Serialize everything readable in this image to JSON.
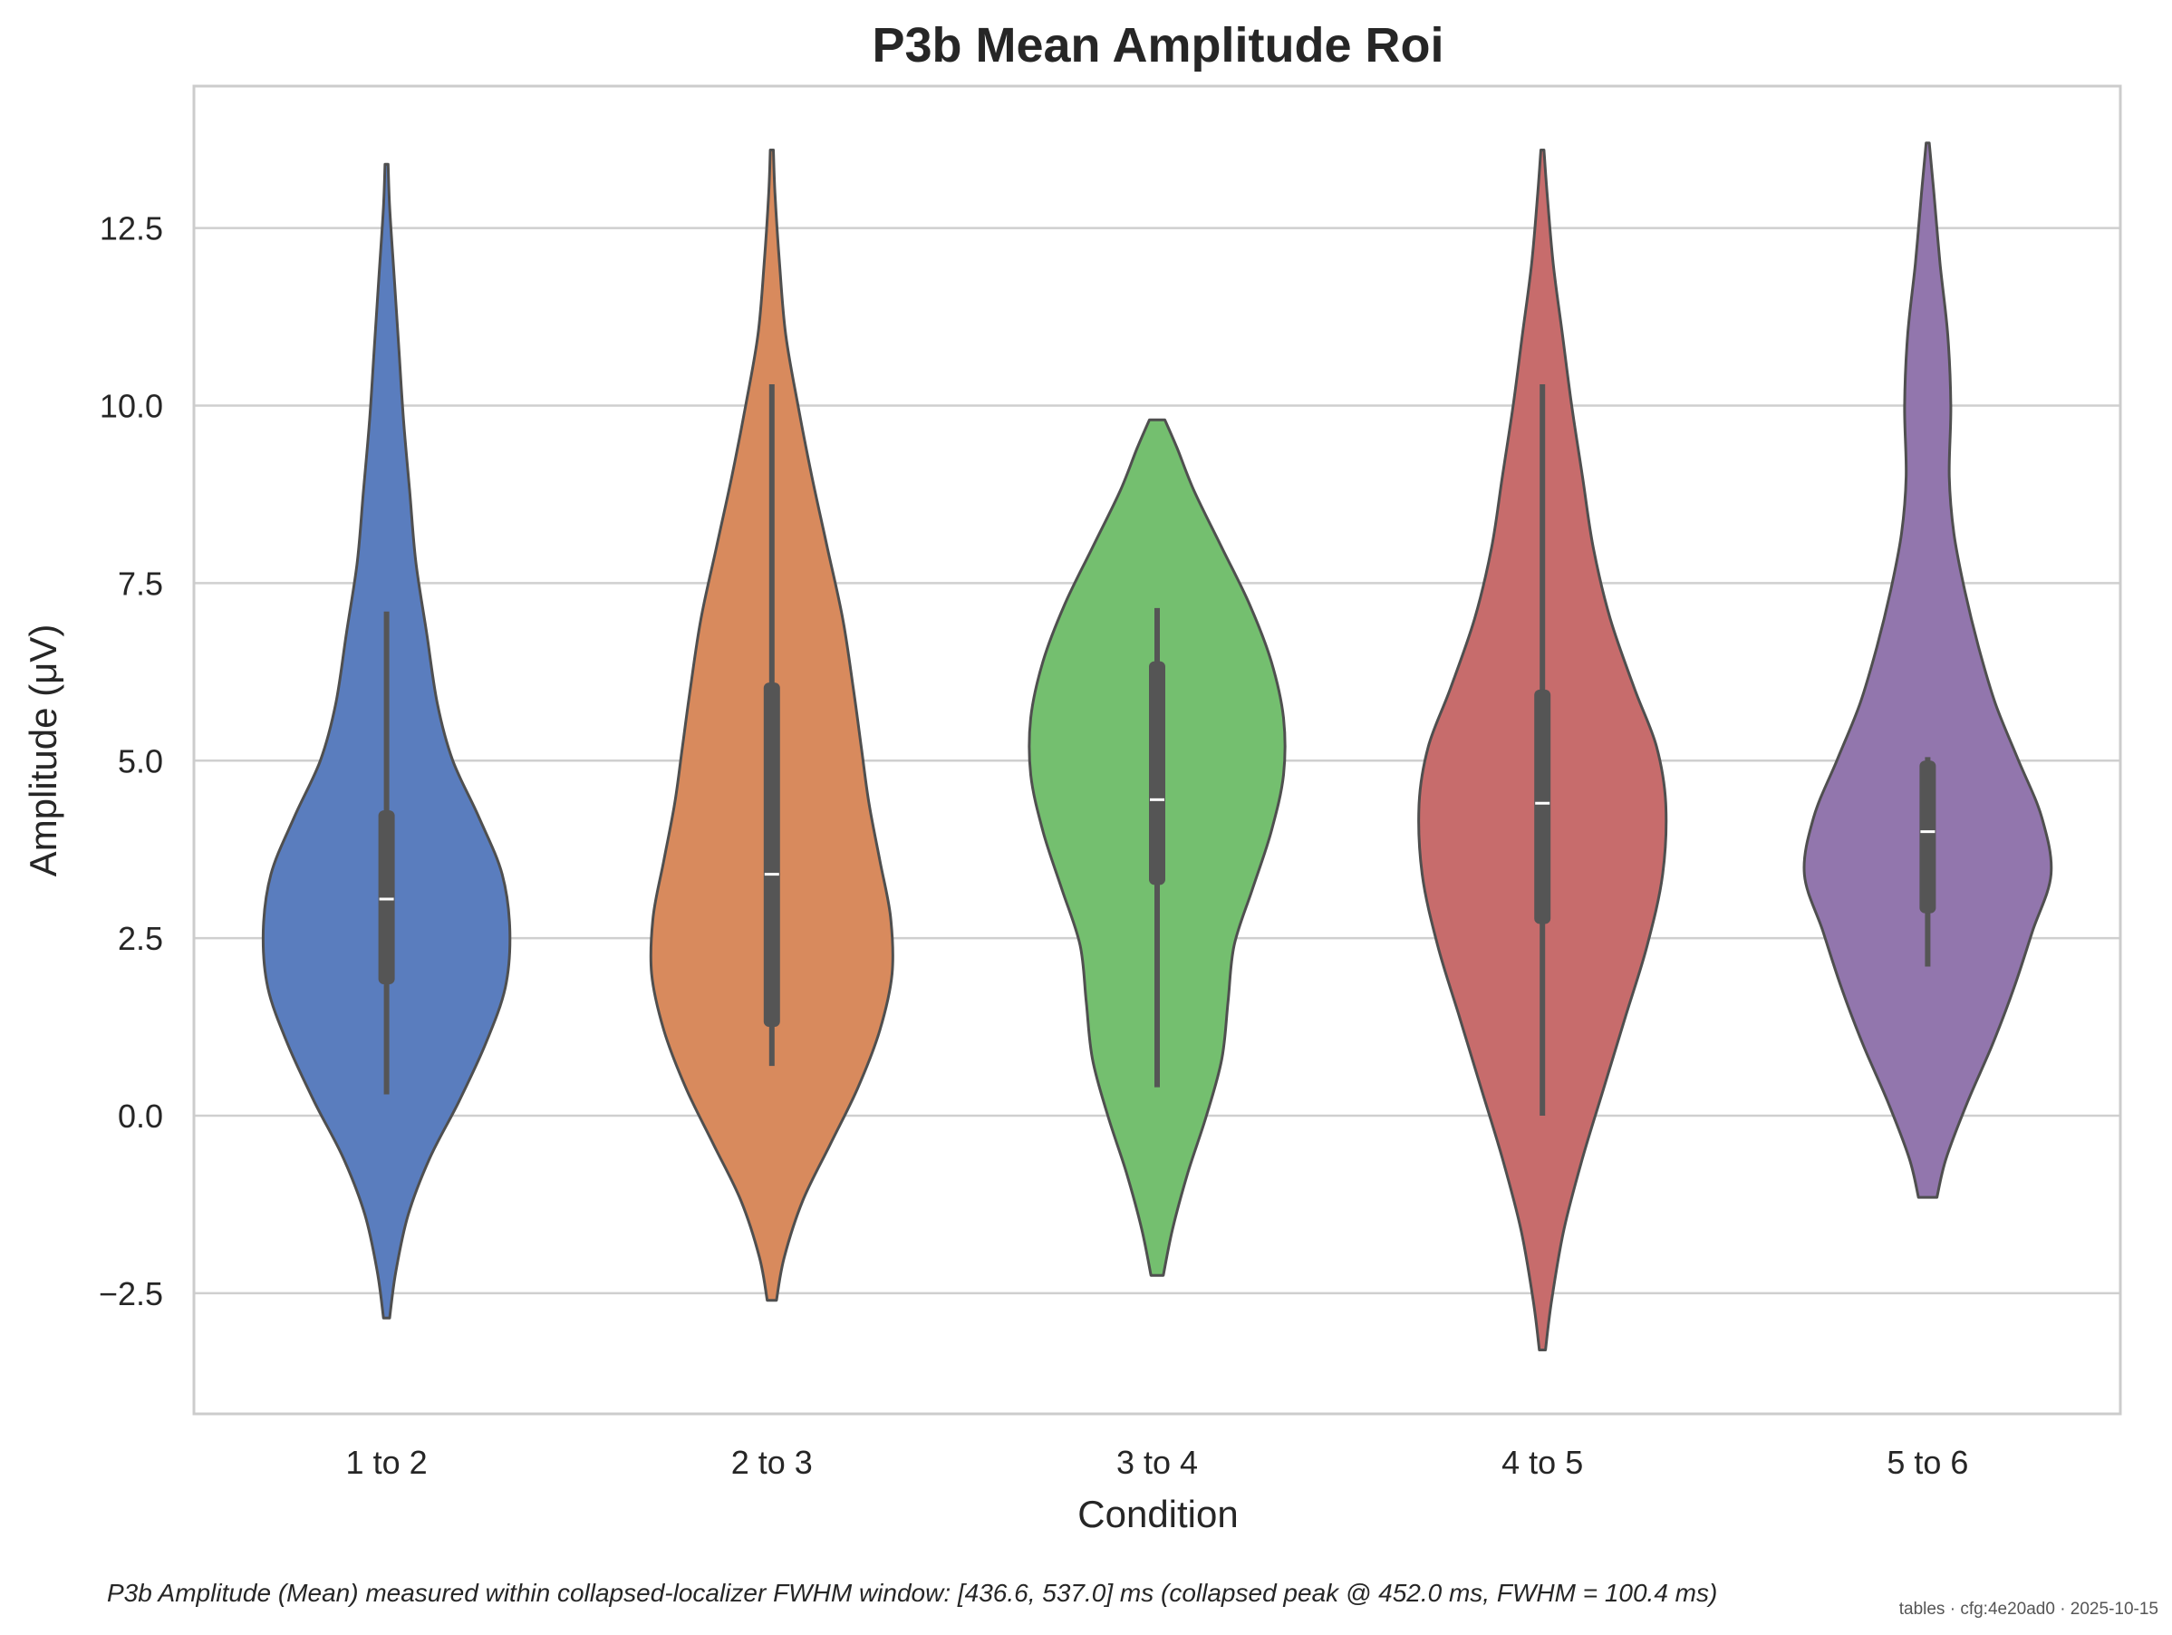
{
  "chart_data": {
    "type": "violin",
    "title": "P3b Mean Amplitude Roi",
    "xlabel": "Condition",
    "ylabel": "Amplitude (μV)",
    "ylim": [
      -4.2,
      14.5
    ],
    "yticks": [
      -2.5,
      0.0,
      2.5,
      5.0,
      7.5,
      10.0,
      12.5
    ],
    "ytick_labels": [
      "−2.5",
      "0.0",
      "2.5",
      "5.0",
      "7.5",
      "10.0",
      "12.5"
    ],
    "grid": "horizontal",
    "categories": [
      "1 to 2",
      "2 to 3",
      "3 to 4",
      "4 to 5",
      "5 to 6"
    ],
    "violins": [
      {
        "category": "1 to 2",
        "color": "#5a7dbe",
        "median": 3.05,
        "q1": 1.85,
        "q3": 4.3,
        "whisker_low": 0.3,
        "whisker_high": 7.1,
        "extent": [
          -2.85,
          13.4
        ],
        "density": [
          [
            -2.85,
            0.02
          ],
          [
            -2.2,
            0.06
          ],
          [
            -1.4,
            0.14
          ],
          [
            -0.6,
            0.28
          ],
          [
            0.2,
            0.47
          ],
          [
            1.0,
            0.64
          ],
          [
            1.8,
            0.77
          ],
          [
            2.6,
            0.8
          ],
          [
            3.4,
            0.75
          ],
          [
            4.2,
            0.6
          ],
          [
            5.0,
            0.43
          ],
          [
            5.8,
            0.33
          ],
          [
            6.8,
            0.26
          ],
          [
            7.8,
            0.19
          ],
          [
            8.8,
            0.15
          ],
          [
            9.8,
            0.11
          ],
          [
            10.8,
            0.08
          ],
          [
            11.8,
            0.05
          ],
          [
            12.8,
            0.02
          ],
          [
            13.4,
            0.01
          ]
        ]
      },
      {
        "category": "2 to 3",
        "color": "#d88a5d",
        "median": 3.4,
        "q1": 1.25,
        "q3": 6.1,
        "whisker_low": 0.7,
        "whisker_high": 10.3,
        "extent": [
          -2.6,
          13.6
        ],
        "density": [
          [
            -2.6,
            0.03
          ],
          [
            -2.0,
            0.08
          ],
          [
            -1.2,
            0.2
          ],
          [
            -0.4,
            0.38
          ],
          [
            0.4,
            0.56
          ],
          [
            1.2,
            0.7
          ],
          [
            2.0,
            0.78
          ],
          [
            2.8,
            0.77
          ],
          [
            3.6,
            0.7
          ],
          [
            4.4,
            0.63
          ],
          [
            5.2,
            0.58
          ],
          [
            6.0,
            0.53
          ],
          [
            7.0,
            0.46
          ],
          [
            8.0,
            0.36
          ],
          [
            9.0,
            0.26
          ],
          [
            10.0,
            0.17
          ],
          [
            11.0,
            0.09
          ],
          [
            12.0,
            0.05
          ],
          [
            13.0,
            0.02
          ],
          [
            13.6,
            0.01
          ]
        ]
      },
      {
        "category": "3 to 4",
        "color": "#74bf6f",
        "median": 4.45,
        "q1": 3.25,
        "q3": 6.4,
        "whisker_low": 0.4,
        "whisker_high": 7.15,
        "extent": [
          -2.25,
          9.8
        ],
        "density": [
          [
            -2.25,
            0.04
          ],
          [
            -1.6,
            0.1
          ],
          [
            -0.8,
            0.2
          ],
          [
            0.0,
            0.32
          ],
          [
            0.8,
            0.42
          ],
          [
            1.6,
            0.46
          ],
          [
            2.4,
            0.5
          ],
          [
            3.2,
            0.62
          ],
          [
            4.0,
            0.74
          ],
          [
            4.8,
            0.82
          ],
          [
            5.6,
            0.82
          ],
          [
            6.4,
            0.74
          ],
          [
            7.2,
            0.6
          ],
          [
            8.0,
            0.42
          ],
          [
            8.8,
            0.24
          ],
          [
            9.4,
            0.13
          ],
          [
            9.8,
            0.05
          ]
        ]
      },
      {
        "category": "4 to 5",
        "color": "#c76c6c",
        "median": 4.4,
        "q1": 2.7,
        "q3": 6.0,
        "whisker_low": 0.0,
        "whisker_high": 10.3,
        "extent": [
          -3.3,
          13.6
        ],
        "density": [
          [
            -3.3,
            0.02
          ],
          [
            -2.6,
            0.06
          ],
          [
            -1.6,
            0.14
          ],
          [
            -0.6,
            0.26
          ],
          [
            0.4,
            0.4
          ],
          [
            1.4,
            0.54
          ],
          [
            2.4,
            0.68
          ],
          [
            3.4,
            0.78
          ],
          [
            4.4,
            0.8
          ],
          [
            5.2,
            0.74
          ],
          [
            6.0,
            0.6
          ],
          [
            7.0,
            0.44
          ],
          [
            8.0,
            0.33
          ],
          [
            9.0,
            0.26
          ],
          [
            10.0,
            0.19
          ],
          [
            11.0,
            0.13
          ],
          [
            12.0,
            0.07
          ],
          [
            13.0,
            0.03
          ],
          [
            13.6,
            0.01
          ]
        ]
      },
      {
        "category": "5 to 6",
        "color": "#9276ad",
        "median": 4.0,
        "q1": 2.85,
        "q3": 5.0,
        "whisker_low": 2.1,
        "whisker_high": 5.05,
        "extent": [
          -1.15,
          13.7
        ],
        "density": [
          [
            -1.15,
            0.06
          ],
          [
            -0.6,
            0.12
          ],
          [
            0.2,
            0.26
          ],
          [
            1.0,
            0.42
          ],
          [
            1.8,
            0.56
          ],
          [
            2.6,
            0.68
          ],
          [
            3.4,
            0.8
          ],
          [
            4.2,
            0.74
          ],
          [
            5.0,
            0.59
          ],
          [
            5.8,
            0.44
          ],
          [
            6.6,
            0.33
          ],
          [
            7.4,
            0.24
          ],
          [
            8.2,
            0.17
          ],
          [
            9.0,
            0.14
          ],
          [
            10.0,
            0.15
          ],
          [
            11.0,
            0.13
          ],
          [
            12.0,
            0.08
          ],
          [
            13.0,
            0.04
          ],
          [
            13.7,
            0.01
          ]
        ]
      }
    ]
  },
  "caption": "P3b Amplitude (Mean) measured within collapsed-localizer FWHM window: [436.6, 537.0] ms (collapsed peak @ 452.0 ms, FWHM = 100.4 ms)",
  "footer": "tables · cfg:4e20ad0 · 2025-10-15",
  "colors": {
    "outline": "#4f4f4f",
    "box": "#555555",
    "median": "#ffffff",
    "grid": "#cfcfcf",
    "frame": "#cccccc",
    "text": "#262626"
  }
}
